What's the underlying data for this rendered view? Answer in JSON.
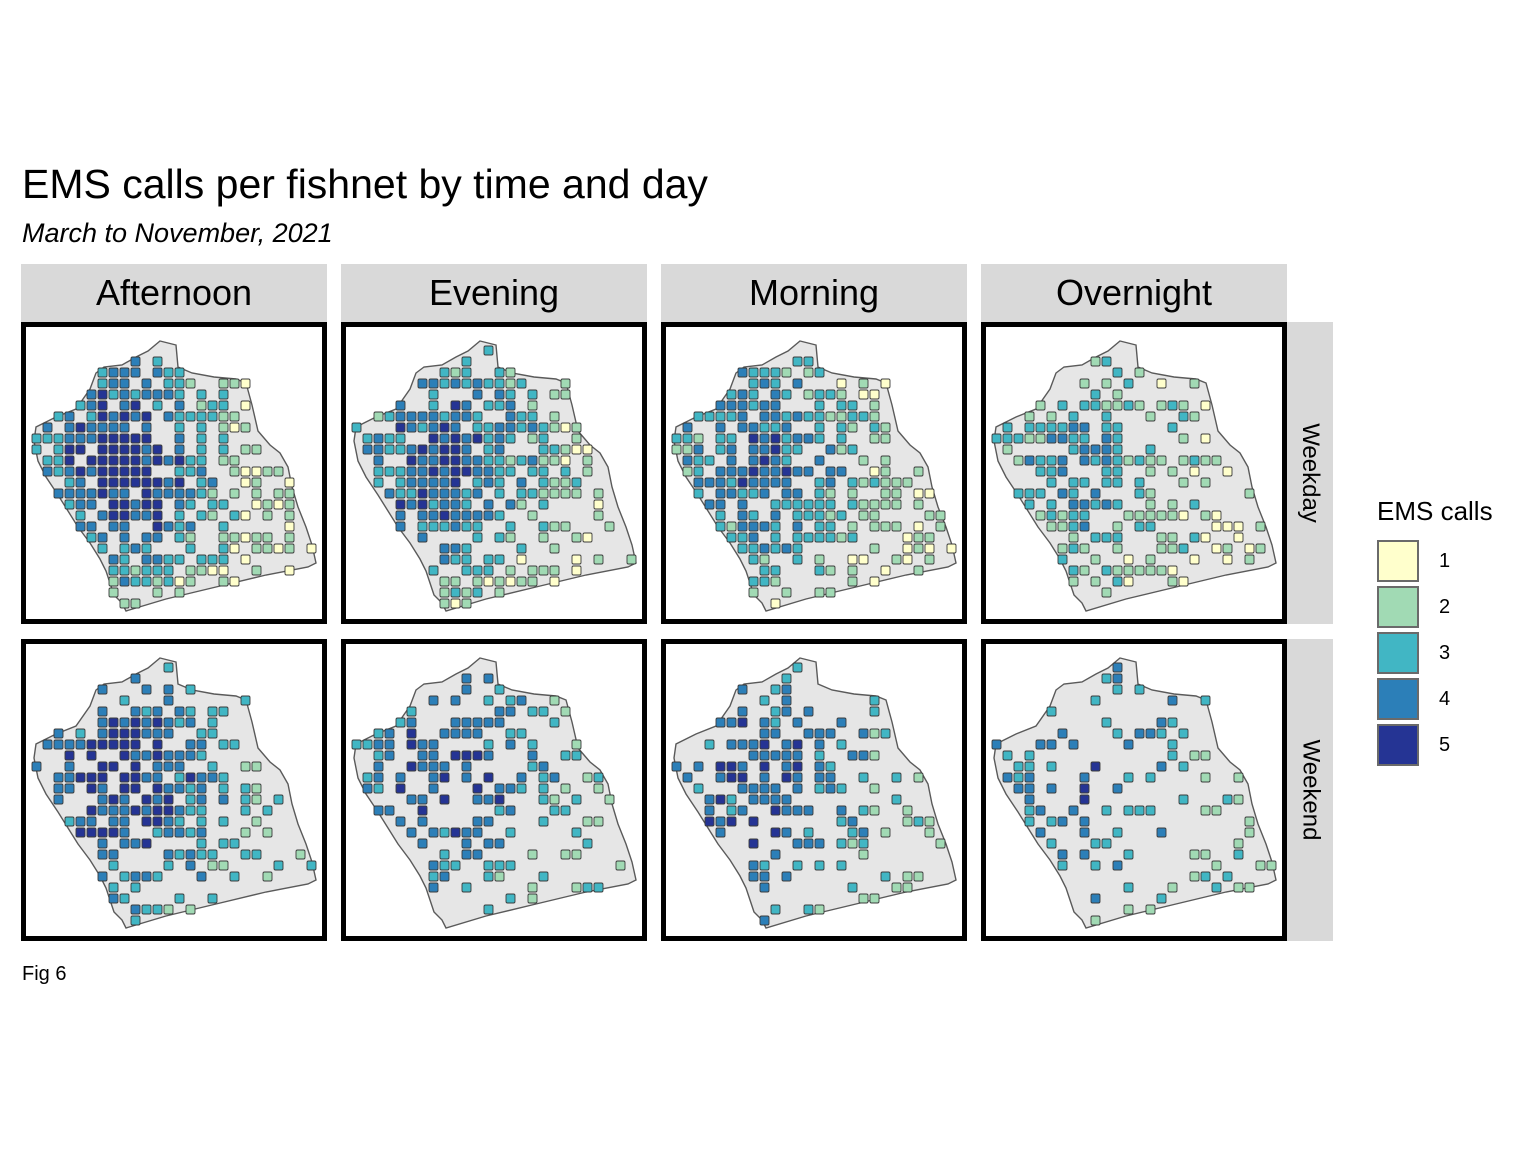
{
  "title": "EMS calls per fishnet by time and day",
  "subtitle": "March to November, 2021",
  "caption": "Fig 6",
  "columns": [
    "Afternoon",
    "Evening",
    "Morning",
    "Overnight"
  ],
  "rows": [
    "Weekday",
    "Weekend"
  ],
  "legend": {
    "title": "EMS calls",
    "items": [
      {
        "label": "1",
        "color": "#ffffcc"
      },
      {
        "label": "2",
        "color": "#a1dab4"
      },
      {
        "label": "3",
        "color": "#41b6c4"
      },
      {
        "label": "4",
        "color": "#2c7fb8"
      },
      {
        "label": "5",
        "color": "#253494"
      }
    ]
  },
  "map_style": {
    "land_fill": "#e6e6e6",
    "boundary_stroke": "#5a5a5a",
    "cell_stroke": "#3c3c3c"
  },
  "chart_data": {
    "type": "heatmap",
    "facet_cols": [
      "Afternoon",
      "Evening",
      "Morning",
      "Overnight"
    ],
    "facet_rows": [
      "Weekday",
      "Weekend"
    ],
    "value_range": [
      1,
      5
    ],
    "value_classes": [
      "1",
      "2",
      "3",
      "4",
      "5"
    ],
    "legend_title": "EMS calls",
    "legend_position": "right",
    "panels": [
      {
        "col": "Afternoon",
        "row": "Weekday",
        "density": 0.88,
        "weekend": false,
        "intensity": 1.0
      },
      {
        "col": "Evening",
        "row": "Weekday",
        "density": 0.82,
        "weekend": false,
        "intensity": 0.85
      },
      {
        "col": "Morning",
        "row": "Weekday",
        "density": 0.78,
        "weekend": false,
        "intensity": 0.75
      },
      {
        "col": "Overnight",
        "row": "Weekday",
        "density": 0.58,
        "weekend": false,
        "intensity": 0.55
      },
      {
        "col": "Afternoon",
        "row": "Weekend",
        "density": 0.62,
        "weekend": true,
        "intensity": 0.95
      },
      {
        "col": "Evening",
        "row": "Weekend",
        "density": 0.52,
        "weekend": true,
        "intensity": 0.85
      },
      {
        "col": "Morning",
        "row": "Weekend",
        "density": 0.45,
        "weekend": true,
        "intensity": 0.8
      },
      {
        "col": "Overnight",
        "row": "Weekend",
        "density": 0.32,
        "weekend": true,
        "intensity": 0.6
      }
    ]
  }
}
